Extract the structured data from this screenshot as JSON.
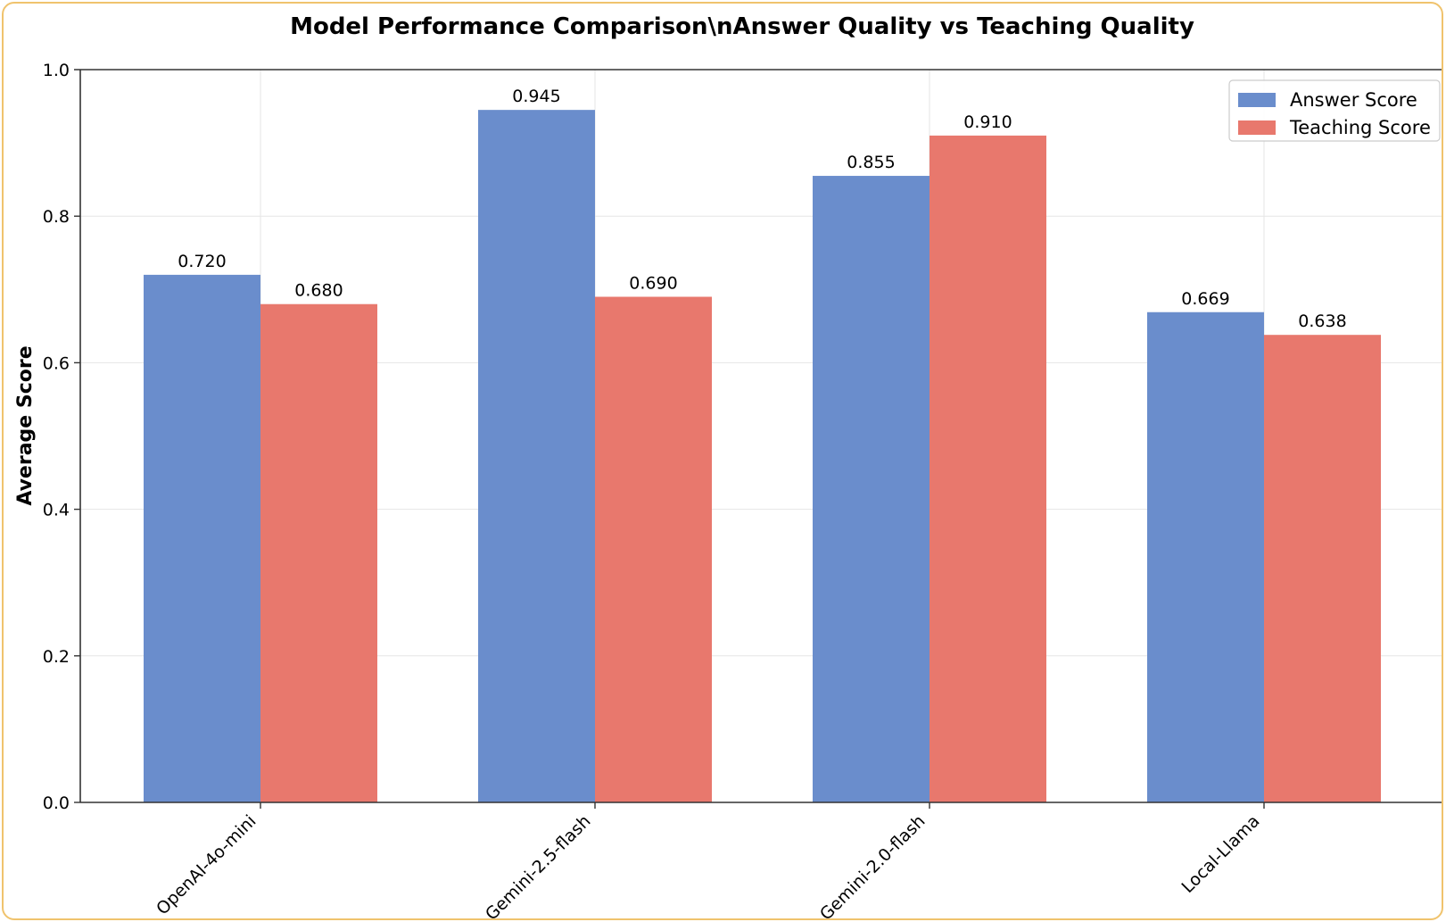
{
  "chart_data": {
    "type": "bar",
    "title": "Model Performance Comparison\\nAnswer Quality vs Teaching Quality",
    "xlabel": "",
    "ylabel": "Average Score",
    "ylim": [
      0,
      1.0
    ],
    "yticks": [
      0.0,
      0.2,
      0.4,
      0.6,
      0.8,
      1.0
    ],
    "grid": true,
    "legend": "top-right",
    "categories": [
      "OpenAI-4o-mini",
      "Gemini-2.5-flash",
      "Gemini-2.0-flash",
      "Local-Llama"
    ],
    "series": [
      {
        "name": "Answer Score",
        "color": "#6a8dcc",
        "values": [
          0.72,
          0.945,
          0.855,
          0.669
        ],
        "labels": [
          "0.720",
          "0.945",
          "0.855",
          "0.669"
        ]
      },
      {
        "name": "Teaching Score",
        "color": "#e8786d",
        "values": [
          0.68,
          0.69,
          0.91,
          0.638
        ],
        "labels": [
          "0.680",
          "0.690",
          "0.910",
          "0.638"
        ]
      }
    ]
  }
}
